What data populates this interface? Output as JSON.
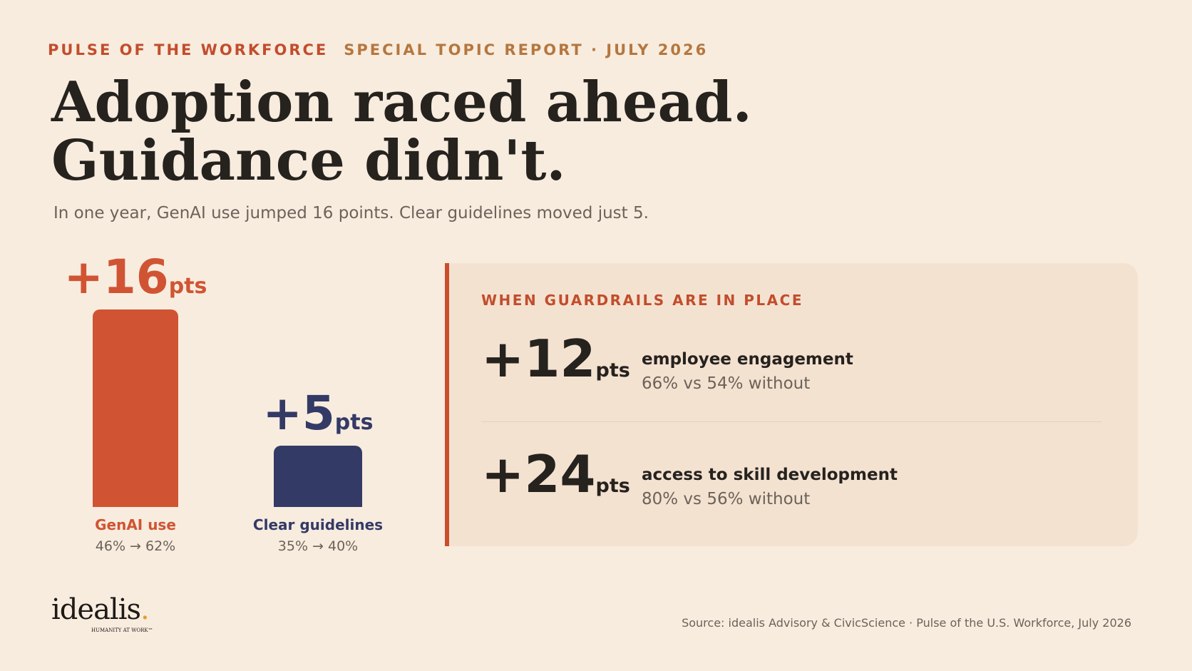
{
  "kicker": {
    "series": "PULSE OF THE WORKFORCE",
    "report": "SPECIAL TOPIC REPORT · JULY 2026"
  },
  "headline": {
    "line1": "Adoption raced ahead.",
    "line2": "Guidance didn't."
  },
  "subhead": "In one year, GenAI use jumped 16 points. Clear guidelines moved just 5.",
  "chart_data": {
    "type": "bar",
    "categories": [
      "GenAI use",
      "Clear guidelines"
    ],
    "values": [
      16,
      5
    ],
    "unit": "pts",
    "delta_labels": [
      "+16",
      "+5"
    ],
    "ranges": [
      "46% → 62%",
      "35% → 40%"
    ],
    "colors": [
      "#d05433",
      "#333a66"
    ]
  },
  "guardrails": {
    "title": "WHEN GUARDRAILS ARE IN PLACE",
    "stats": [
      {
        "value": "+12",
        "unit": "pts",
        "label": "employee engagement",
        "detail": "66% vs 54% without"
      },
      {
        "value": "+24",
        "unit": "pts",
        "label": "access to skill development",
        "detail": "80% vs 56% without"
      }
    ]
  },
  "logo": {
    "word": "idealis",
    "dot": ".",
    "tagline": "HUMANITY AT WORK™"
  },
  "source": "Source: idealis Advisory & CivicScience · Pulse of the U.S. Workforce, July 2026"
}
